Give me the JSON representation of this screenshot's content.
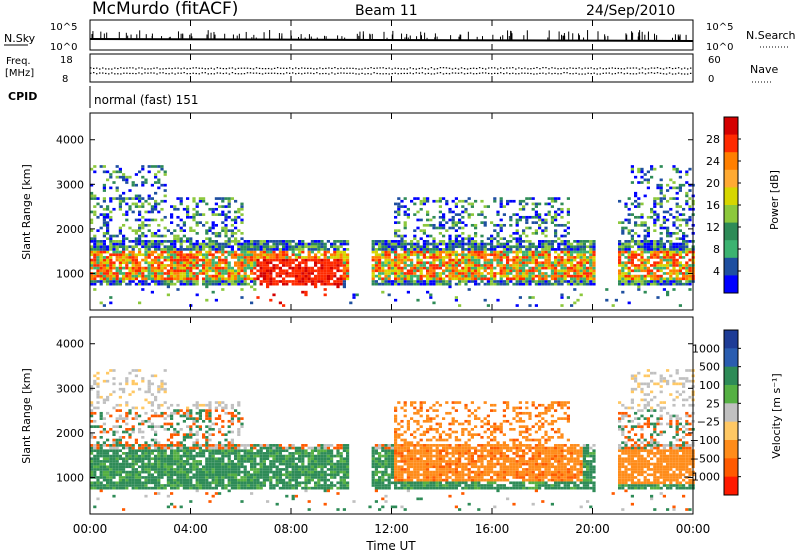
{
  "header": {
    "station": "McMurdo (fitACF)",
    "beam": "Beam 11",
    "date": "24/Sep/2010"
  },
  "panels": {
    "nsky": {
      "left_label": "N.Sky",
      "right_label": "N.Search",
      "left_ticks": [
        "10^5",
        "10^0"
      ],
      "right_ticks": [
        "10^5",
        "10^0"
      ]
    },
    "freq": {
      "left_label_1": "Freq.",
      "left_label_2": "[MHz]",
      "right_label": "Nave",
      "left_ticks": [
        "18",
        "8"
      ],
      "right_ticks": [
        "60",
        "0"
      ]
    },
    "cpid": {
      "label": "CPID",
      "value": "normal (fast) 151"
    }
  },
  "chart_data": [
    {
      "type": "heatmap",
      "title": "",
      "xlabel": "Time UT",
      "ylabel": "Slant Range [km]",
      "x_ticks": [
        "00:00",
        "04:00",
        "08:00",
        "12:00",
        "16:00",
        "20:00",
        "00:00"
      ],
      "y_ticks": [
        1000,
        2000,
        3000,
        4000
      ],
      "xlim_hours": [
        0,
        24
      ],
      "ylim_km": [
        180,
        4600
      ],
      "colorbar": {
        "label": "Power [dB]",
        "ticks": [
          "28",
          "24",
          "20",
          "16",
          "12",
          "8",
          "4"
        ],
        "colors": [
          "#d40000",
          "#ff2a00",
          "#ff7f00",
          "#ffaa33",
          "#d6d600",
          "#8cc83c",
          "#2e8b57",
          "#3cb371",
          "#1e4fa0",
          "#0000ff"
        ]
      }
    },
    {
      "type": "heatmap",
      "title": "",
      "xlabel": "Time UT",
      "ylabel": "Slant Range [km]",
      "x_ticks": [
        "00:00",
        "04:00",
        "08:00",
        "12:00",
        "16:00",
        "20:00",
        "00:00"
      ],
      "y_ticks": [
        1000,
        2000,
        3000,
        4000
      ],
      "xlim_hours": [
        0,
        24
      ],
      "ylim_km": [
        180,
        4600
      ],
      "colorbar": {
        "label": "Velocity [m s⁻¹]",
        "ticks": [
          "1000",
          "500",
          "100",
          "25",
          "−25",
          "−100",
          "−500",
          "−1000"
        ],
        "colors": [
          "#1e3c96",
          "#2a5db0",
          "#2e8b57",
          "#55b043",
          "#c0c0c0",
          "#ffc864",
          "#ff8c1a",
          "#ff5a00",
          "#ff1a00"
        ]
      }
    }
  ]
}
